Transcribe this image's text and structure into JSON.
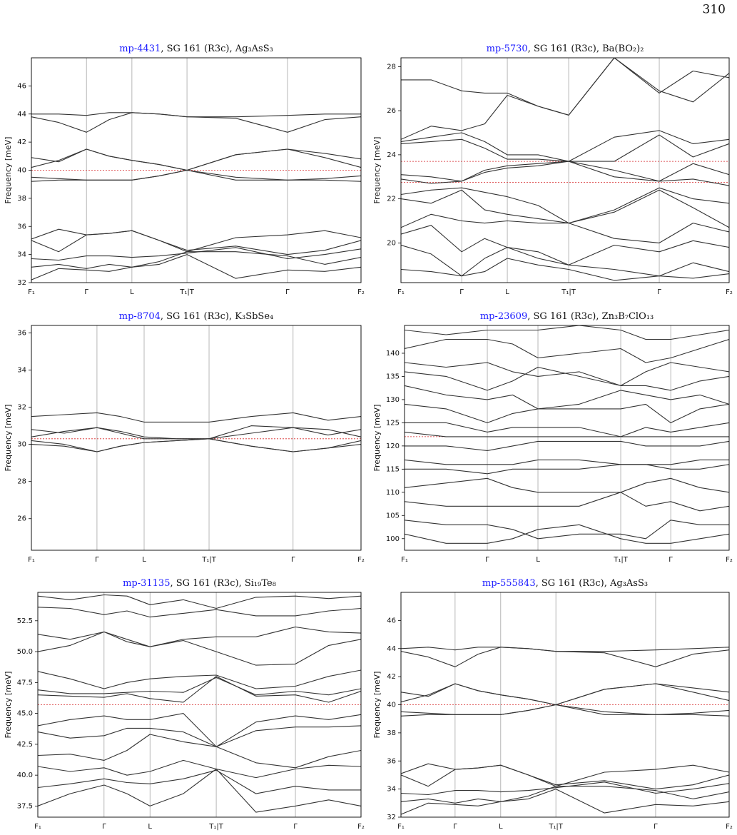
{
  "page_number": "310",
  "chart_data": [
    {
      "type": "line",
      "title_id": "mp-4431",
      "title": ", SG 161 (R3c), Ag₃AsS₃",
      "ylabel": "Frequency [meV]",
      "xlim": [
        0,
        1
      ],
      "xticks": [
        {
          "value": 0,
          "label": "F₁"
        },
        {
          "value": 0.167,
          "label": "Γ"
        },
        {
          "value": 0.305,
          "label": "L"
        },
        {
          "value": 0.472,
          "label": "T₁|T"
        },
        {
          "value": 0.777,
          "label": "Γ"
        },
        {
          "value": 1,
          "label": "F₂"
        }
      ],
      "ylim": [
        32,
        48
      ],
      "yticks": [
        32,
        34,
        36,
        38,
        40,
        42,
        44,
        46
      ],
      "color": "#333333",
      "ref_color": "#d62728",
      "ref_lines": [
        40
      ],
      "x": [
        0,
        0.083,
        0.167,
        0.236,
        0.305,
        0.388,
        0.472,
        0.62,
        0.777,
        0.89,
        1
      ],
      "bands": [
        [
          44.0,
          44.0,
          43.9,
          44.1,
          44.1,
          44.0,
          43.8,
          43.8,
          43.9,
          44.0,
          44.0
        ],
        [
          43.8,
          43.4,
          42.7,
          43.6,
          44.1,
          44.0,
          43.8,
          43.7,
          42.7,
          43.6,
          43.8
        ],
        [
          40.9,
          40.6,
          41.5,
          41.0,
          40.7,
          40.4,
          40.0,
          41.1,
          41.5,
          41.2,
          40.8
        ],
        [
          40.2,
          40.7,
          41.5,
          41.0,
          40.7,
          40.4,
          40.0,
          41.1,
          41.5,
          40.9,
          40.2
        ],
        [
          39.5,
          39.4,
          39.3,
          39.3,
          39.3,
          39.6,
          40.0,
          39.5,
          39.3,
          39.4,
          39.6
        ],
        [
          39.2,
          39.3,
          39.3,
          39.3,
          39.3,
          39.6,
          40.0,
          39.3,
          39.3,
          39.3,
          39.2
        ],
        [
          35.1,
          35.8,
          35.4,
          35.5,
          35.7,
          35.0,
          34.2,
          35.2,
          35.4,
          35.7,
          35.2
        ],
        [
          35.0,
          34.2,
          35.4,
          35.5,
          35.7,
          35.0,
          34.3,
          34.6,
          34.0,
          34.3,
          35.0
        ],
        [
          33.7,
          33.6,
          33.9,
          33.9,
          33.8,
          33.9,
          34.1,
          34.5,
          33.7,
          34.0,
          34.4
        ],
        [
          33.1,
          33.3,
          33.0,
          33.3,
          33.1,
          33.5,
          34.2,
          34.2,
          33.9,
          33.3,
          33.8
        ],
        [
          32.2,
          33.0,
          32.9,
          32.8,
          33.1,
          33.3,
          34.0,
          32.3,
          32.9,
          32.8,
          33.1
        ]
      ]
    },
    {
      "type": "line",
      "title_id": "mp-5730",
      "title": ", SG 161 (R3c), Ba(BO₂)₂",
      "ylabel": "Frequency [meV]",
      "xlim": [
        0,
        1
      ],
      "xticks": [
        {
          "value": 0,
          "label": "F₁"
        },
        {
          "value": 0.185,
          "label": "Γ"
        },
        {
          "value": 0.324,
          "label": "L"
        },
        {
          "value": 0.511,
          "label": "T₁|T"
        },
        {
          "value": 0.787,
          "label": "Γ"
        },
        {
          "value": 1,
          "label": "F₂"
        }
      ],
      "ylim": [
        18.2,
        28.4
      ],
      "yticks": [
        20,
        22,
        24,
        26,
        28
      ],
      "color": "#333333",
      "ref_color": "#d62728",
      "ref_lines": [
        23.7,
        22.75
      ],
      "x": [
        0,
        0.092,
        0.185,
        0.255,
        0.324,
        0.418,
        0.511,
        0.65,
        0.787,
        0.89,
        1
      ],
      "bands": [
        [
          27.4,
          27.4,
          26.9,
          26.8,
          26.8,
          26.2,
          25.8,
          28.4,
          26.9,
          26.4,
          27.7
        ],
        [
          24.7,
          25.3,
          25.1,
          25.4,
          26.7,
          26.2,
          25.8,
          28.4,
          26.8,
          27.8,
          27.5
        ],
        [
          24.6,
          24.8,
          25.0,
          24.6,
          24.0,
          24.0,
          23.7,
          24.8,
          25.1,
          24.5,
          24.7
        ],
        [
          24.5,
          24.6,
          24.7,
          24.3,
          23.8,
          23.8,
          23.7,
          23.7,
          24.9,
          23.9,
          24.5
        ],
        [
          23.1,
          23.0,
          22.8,
          23.3,
          23.5,
          23.6,
          23.7,
          23.0,
          22.8,
          23.6,
          23.1
        ],
        [
          22.9,
          22.7,
          22.8,
          23.2,
          23.4,
          23.5,
          23.7,
          23.3,
          22.8,
          22.9,
          22.6
        ],
        [
          22.2,
          22.4,
          22.5,
          22.3,
          22.1,
          21.7,
          20.9,
          21.5,
          22.5,
          22.0,
          21.8
        ],
        [
          22.0,
          21.8,
          22.4,
          21.5,
          21.3,
          21.1,
          20.9,
          21.4,
          22.4,
          21.6,
          20.7
        ],
        [
          20.7,
          21.3,
          21.0,
          20.9,
          21.0,
          20.9,
          20.9,
          20.2,
          20.0,
          20.9,
          20.5
        ],
        [
          20.4,
          20.8,
          19.6,
          20.2,
          19.8,
          19.3,
          19.0,
          19.9,
          19.6,
          20.1,
          19.8
        ],
        [
          19.9,
          19.5,
          18.5,
          19.3,
          19.8,
          19.6,
          19.0,
          18.8,
          18.5,
          19.1,
          18.7
        ],
        [
          18.8,
          18.7,
          18.5,
          18.7,
          19.3,
          19.0,
          18.8,
          18.3,
          18.5,
          18.4,
          18.6
        ]
      ]
    },
    {
      "type": "line",
      "title_id": "mp-8704",
      "title": ", SG 161 (R3c), K₃SbSe₄",
      "ylabel": "Frequency [meV]",
      "xlim": [
        0,
        1
      ],
      "xticks": [
        {
          "value": 0,
          "label": "F₁"
        },
        {
          "value": 0.199,
          "label": "Γ"
        },
        {
          "value": 0.342,
          "label": "L"
        },
        {
          "value": 0.539,
          "label": "T₁|T"
        },
        {
          "value": 0.794,
          "label": "Γ"
        },
        {
          "value": 1,
          "label": "F₂"
        }
      ],
      "ylim": [
        24.3,
        36.4
      ],
      "yticks": [
        26,
        28,
        30,
        32,
        34,
        36
      ],
      "color": "#333333",
      "ref_color": "#d62728",
      "ref_lines": [
        30.3
      ],
      "x": [
        0,
        0.1,
        0.199,
        0.27,
        0.342,
        0.44,
        0.539,
        0.667,
        0.794,
        0.9,
        1
      ],
      "bands": [
        [
          31.5,
          31.6,
          31.7,
          31.5,
          31.2,
          31.2,
          31.2,
          31.5,
          31.7,
          31.3,
          31.5
        ],
        [
          30.8,
          30.6,
          30.9,
          30.7,
          30.4,
          30.3,
          30.3,
          31.0,
          30.9,
          30.5,
          30.8
        ],
        [
          30.4,
          30.7,
          30.9,
          30.6,
          30.3,
          30.3,
          30.3,
          30.6,
          30.9,
          30.8,
          30.4
        ],
        [
          30.2,
          30.0,
          29.6,
          29.9,
          30.1,
          30.2,
          30.3,
          29.9,
          29.6,
          29.8,
          30.2
        ],
        [
          30.0,
          29.9,
          29.6,
          29.9,
          30.1,
          30.2,
          30.3,
          29.9,
          29.6,
          29.8,
          30.0
        ]
      ]
    },
    {
      "type": "line",
      "title_id": "mp-23609",
      "title": ", SG 161 (R3c), Zn₃B₇ClO₁₃",
      "ylabel": "Frequency [meV]",
      "xlim": [
        0,
        1
      ],
      "xticks": [
        {
          "value": 0,
          "label": "F₁"
        },
        {
          "value": 0.255,
          "label": "Γ"
        },
        {
          "value": 0.411,
          "label": "L"
        },
        {
          "value": 0.666,
          "label": "T₁|T"
        },
        {
          "value": 0.82,
          "label": "Γ"
        },
        {
          "value": 1,
          "label": "F₂"
        }
      ],
      "ylim": [
        97.5,
        146
      ],
      "yticks": [
        100,
        105,
        110,
        115,
        120,
        125,
        130,
        135,
        140
      ],
      "color": "#333333",
      "ref_color": "#d62728",
      "ref_lines": [
        122
      ],
      "x": [
        0,
        0.128,
        0.255,
        0.333,
        0.411,
        0.538,
        0.666,
        0.743,
        0.82,
        0.91,
        1
      ],
      "bands": [
        [
          145,
          144,
          145,
          145,
          145,
          146,
          145,
          143,
          143,
          144,
          145
        ],
        [
          141,
          143,
          143,
          142,
          139,
          140,
          141,
          138,
          139,
          141,
          143
        ],
        [
          138,
          137,
          138,
          136,
          135,
          136,
          133,
          136,
          138,
          137,
          136
        ],
        [
          136,
          135,
          132,
          134,
          137,
          135,
          133,
          133,
          132,
          134,
          135
        ],
        [
          133,
          131,
          130,
          131,
          128,
          129,
          132,
          131,
          130,
          131,
          129
        ],
        [
          129,
          128,
          125,
          127,
          128,
          128,
          128,
          129,
          125,
          128,
          129
        ],
        [
          125,
          125,
          123,
          124,
          124,
          124,
          122,
          124,
          123,
          124,
          125
        ],
        [
          123,
          122,
          122,
          122,
          122,
          122,
          122,
          122,
          122,
          122,
          122
        ],
        [
          120,
          120,
          119,
          120,
          121,
          121,
          121,
          120,
          120,
          120,
          121
        ],
        [
          117,
          116,
          116,
          116,
          117,
          117,
          116,
          116,
          116,
          117,
          117
        ],
        [
          115,
          115,
          114,
          115,
          115,
          115,
          116,
          116,
          115,
          115,
          116
        ],
        [
          111,
          112,
          113,
          111,
          110,
          110,
          110,
          112,
          113,
          111,
          110
        ],
        [
          108,
          107,
          107,
          107,
          107,
          107,
          110,
          107,
          108,
          106,
          107
        ],
        [
          104,
          103,
          103,
          102,
          100,
          101,
          101,
          100,
          104,
          103,
          103
        ],
        [
          101,
          99,
          99,
          100,
          102,
          103,
          100,
          99,
          99,
          100,
          101
        ]
      ]
    },
    {
      "type": "line",
      "title_id": "mp-31135",
      "title": ", SG 161 (R3c), Si₁₉Te₈",
      "ylabel": "Frequency [meV]",
      "xlim": [
        0,
        1
      ],
      "xticks": [
        {
          "value": 0,
          "label": "F₁"
        },
        {
          "value": 0.205,
          "label": "Γ"
        },
        {
          "value": 0.347,
          "label": "L"
        },
        {
          "value": 0.552,
          "label": "T₁|T"
        },
        {
          "value": 0.797,
          "label": "Γ"
        },
        {
          "value": 1,
          "label": "F₂"
        }
      ],
      "ylim": [
        36.6,
        54.8
      ],
      "yticks": [
        37.5,
        {
          "value": 40,
          "label": "40.0"
        },
        42.5,
        {
          "value": 45,
          "label": "45.0"
        },
        47.5,
        {
          "value": 50,
          "label": "50.0"
        },
        52.5
      ],
      "color": "#333333",
      "ref_color": "#d62728",
      "ref_lines": [
        45.7
      ],
      "x": [
        0,
        0.1,
        0.205,
        0.276,
        0.347,
        0.45,
        0.552,
        0.675,
        0.797,
        0.9,
        1
      ],
      "bands": [
        [
          54.5,
          54.2,
          54.6,
          54.5,
          53.8,
          54.2,
          53.5,
          54.4,
          54.5,
          54.3,
          54.5
        ],
        [
          53.6,
          53.5,
          53.0,
          53.3,
          52.8,
          53.1,
          53.4,
          52.9,
          52.9,
          53.3,
          53.5
        ],
        [
          51.4,
          51.0,
          51.6,
          51.0,
          50.4,
          51.0,
          51.2,
          51.2,
          52.0,
          51.6,
          51.5
        ],
        [
          50.0,
          50.5,
          51.6,
          50.8,
          50.4,
          50.9,
          50.0,
          48.9,
          49.0,
          50.5,
          51.0
        ],
        [
          48.4,
          47.8,
          47.0,
          47.5,
          47.8,
          48.0,
          48.1,
          47.0,
          47.2,
          48.0,
          48.5
        ],
        [
          46.9,
          46.6,
          46.6,
          46.7,
          46.8,
          46.7,
          47.9,
          46.5,
          46.8,
          46.5,
          47.0
        ],
        [
          46.5,
          46.4,
          46.3,
          46.6,
          46.2,
          45.9,
          48.0,
          46.4,
          46.5,
          45.9,
          46.8
        ],
        [
          44.0,
          44.5,
          44.8,
          44.5,
          44.5,
          45.0,
          42.3,
          44.3,
          44.8,
          44.5,
          44.9
        ],
        [
          43.5,
          43.0,
          43.2,
          43.8,
          43.8,
          43.5,
          42.3,
          43.6,
          43.9,
          43.9,
          44.0
        ],
        [
          41.6,
          41.7,
          41.2,
          42.0,
          43.3,
          42.7,
          42.3,
          41.0,
          40.6,
          41.5,
          42.0
        ],
        [
          40.7,
          40.3,
          40.6,
          40.0,
          40.3,
          41.2,
          40.5,
          39.8,
          40.5,
          40.8,
          40.7
        ],
        [
          39.0,
          39.3,
          39.7,
          39.4,
          39.3,
          39.7,
          40.4,
          38.5,
          39.1,
          38.8,
          38.8
        ],
        [
          37.5,
          38.5,
          39.2,
          38.5,
          37.5,
          38.5,
          40.5,
          37.0,
          37.5,
          38.0,
          37.5
        ]
      ]
    },
    {
      "type": "line",
      "title_id": "mp-555843",
      "title": ", SG 161 (R3c), Ag₃AsS₃",
      "ylabel": "Frequency [meV]",
      "xlim": [
        0,
        1
      ],
      "xticks": [
        {
          "value": 0,
          "label": "F₁"
        },
        {
          "value": 0.165,
          "label": "Γ"
        },
        {
          "value": 0.304,
          "label": "L"
        },
        {
          "value": 0.472,
          "label": "T₁|T"
        },
        {
          "value": 0.776,
          "label": "Γ"
        },
        {
          "value": 1,
          "label": "F₂"
        }
      ],
      "ylim": [
        32,
        48
      ],
      "yticks": [
        32,
        34,
        36,
        38,
        40,
        42,
        44,
        46
      ],
      "color": "#333333",
      "ref_color": "#d62728",
      "ref_lines": [
        40
      ],
      "x": [
        0,
        0.083,
        0.165,
        0.235,
        0.304,
        0.388,
        0.472,
        0.62,
        0.776,
        0.89,
        1
      ],
      "bands": [
        [
          44.0,
          44.1,
          43.9,
          44.1,
          44.1,
          44.0,
          43.8,
          43.8,
          43.9,
          44.0,
          44.1
        ],
        [
          43.8,
          43.4,
          42.7,
          43.6,
          44.1,
          44.0,
          43.8,
          43.7,
          42.7,
          43.6,
          43.9
        ],
        [
          40.9,
          40.6,
          41.5,
          41.0,
          40.7,
          40.4,
          40.0,
          41.1,
          41.5,
          41.2,
          40.9
        ],
        [
          40.2,
          40.7,
          41.5,
          41.0,
          40.7,
          40.4,
          40.0,
          41.1,
          41.5,
          40.9,
          40.3
        ],
        [
          39.5,
          39.4,
          39.3,
          39.3,
          39.3,
          39.6,
          40.0,
          39.5,
          39.3,
          39.4,
          39.6
        ],
        [
          39.2,
          39.3,
          39.3,
          39.3,
          39.3,
          39.6,
          40.0,
          39.3,
          39.3,
          39.3,
          39.2
        ],
        [
          35.1,
          35.8,
          35.4,
          35.5,
          35.7,
          35.0,
          34.2,
          35.2,
          35.4,
          35.7,
          35.2
        ],
        [
          35.0,
          34.2,
          35.4,
          35.5,
          35.7,
          35.0,
          34.3,
          34.6,
          34.0,
          34.3,
          35.0
        ],
        [
          33.7,
          33.6,
          33.9,
          33.9,
          33.8,
          33.9,
          34.1,
          34.5,
          33.7,
          34.0,
          34.4
        ],
        [
          33.1,
          33.3,
          33.0,
          33.3,
          33.1,
          33.5,
          34.2,
          34.2,
          33.9,
          33.3,
          33.8
        ],
        [
          32.2,
          33.0,
          32.9,
          32.8,
          33.1,
          33.3,
          34.0,
          32.3,
          32.9,
          32.8,
          33.1
        ]
      ]
    }
  ]
}
